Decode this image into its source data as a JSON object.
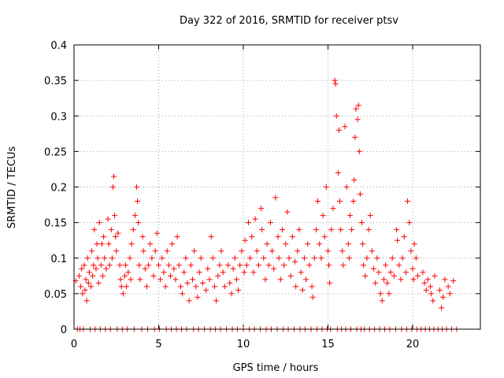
{
  "chart_data": {
    "type": "scatter",
    "title": "Day 322 of 2016, SRMTID for receiver ptsv",
    "xlabel": "GPS time / hours",
    "ylabel": "SRMTID / TECUs",
    "xlim": [
      0,
      24
    ],
    "ylim": [
      0,
      0.4
    ],
    "xticks": [
      0,
      5,
      10,
      15,
      20
    ],
    "xtick_labels": [
      "0",
      "5",
      "10",
      "15",
      "20"
    ],
    "yticks": [
      0,
      0.05,
      0.1,
      0.15,
      0.2,
      0.25,
      0.3,
      0.35,
      0.4
    ],
    "ytick_labels": [
      "0",
      "0.05",
      "0.1",
      "0.15",
      "0.2",
      "0.25",
      "0.3",
      "0.35",
      "0.4"
    ],
    "grid": true,
    "marker": "+",
    "color": "#ff0000",
    "series": [
      {
        "name": "SRMTID",
        "points": [
          [
            0.1,
            0.068
          ],
          [
            0.2,
            0.0
          ],
          [
            0.3,
            0.075
          ],
          [
            0.35,
            0.0
          ],
          [
            0.4,
            0.06
          ],
          [
            0.45,
            0.085
          ],
          [
            0.5,
            0.05
          ],
          [
            0.55,
            0.0
          ],
          [
            0.6,
            0.09
          ],
          [
            0.65,
            0.055
          ],
          [
            0.7,
            0.07
          ],
          [
            0.75,
            0.04
          ],
          [
            0.8,
            0.1
          ],
          [
            0.85,
            0.065
          ],
          [
            0.9,
            0.08
          ],
          [
            0.95,
            0.0
          ],
          [
            1.0,
            0.06
          ],
          [
            1.05,
            0.11
          ],
          [
            1.1,
            0.075
          ],
          [
            1.15,
            0.09
          ],
          [
            1.2,
            0.14
          ],
          [
            1.25,
            0.0
          ],
          [
            1.3,
            0.085
          ],
          [
            1.35,
            0.12
          ],
          [
            1.4,
            0.1
          ],
          [
            1.45,
            0.065
          ],
          [
            1.5,
            0.15
          ],
          [
            1.55,
            0.0
          ],
          [
            1.6,
            0.09
          ],
          [
            1.65,
            0.12
          ],
          [
            1.7,
            0.075
          ],
          [
            1.75,
            0.13
          ],
          [
            1.8,
            0.1
          ],
          [
            1.85,
            0.0
          ],
          [
            1.9,
            0.085
          ],
          [
            2.0,
            0.155
          ],
          [
            2.05,
            0.12
          ],
          [
            2.1,
            0.09
          ],
          [
            2.15,
            0.0
          ],
          [
            2.2,
            0.14
          ],
          [
            2.25,
            0.1
          ],
          [
            2.3,
            0.2
          ],
          [
            2.35,
            0.215
          ],
          [
            2.4,
            0.16
          ],
          [
            2.45,
            0.13
          ],
          [
            2.5,
            0.11
          ],
          [
            2.55,
            0.0
          ],
          [
            2.6,
            0.135
          ],
          [
            2.7,
            0.09
          ],
          [
            2.75,
            0.07
          ],
          [
            2.8,
            0.06
          ],
          [
            2.85,
            0.0
          ],
          [
            2.9,
            0.05
          ],
          [
            3.0,
            0.075
          ],
          [
            3.05,
            0.09
          ],
          [
            3.1,
            0.06
          ],
          [
            3.15,
            0.0
          ],
          [
            3.2,
            0.08
          ],
          [
            3.3,
            0.1
          ],
          [
            3.35,
            0.07
          ],
          [
            3.4,
            0.12
          ],
          [
            3.5,
            0.14
          ],
          [
            3.55,
            0.0
          ],
          [
            3.6,
            0.16
          ],
          [
            3.7,
            0.2
          ],
          [
            3.75,
            0.18
          ],
          [
            3.8,
            0.15
          ],
          [
            3.85,
            0.09
          ],
          [
            3.9,
            0.07
          ],
          [
            4.0,
            0.0
          ],
          [
            4.05,
            0.13
          ],
          [
            4.1,
            0.11
          ],
          [
            4.2,
            0.085
          ],
          [
            4.3,
            0.06
          ],
          [
            4.35,
            0.0
          ],
          [
            4.4,
            0.09
          ],
          [
            4.5,
            0.12
          ],
          [
            4.6,
            0.1
          ],
          [
            4.7,
            0.075
          ],
          [
            4.75,
            0.0
          ],
          [
            4.8,
            0.11
          ],
          [
            4.9,
            0.135
          ],
          [
            5.0,
            0.09
          ],
          [
            5.05,
            0.0
          ],
          [
            5.1,
            0.07
          ],
          [
            5.2,
            0.1
          ],
          [
            5.3,
            0.08
          ],
          [
            5.4,
            0.06
          ],
          [
            5.45,
            0.0
          ],
          [
            5.5,
            0.11
          ],
          [
            5.6,
            0.09
          ],
          [
            5.7,
            0.075
          ],
          [
            5.75,
            0.0
          ],
          [
            5.8,
            0.12
          ],
          [
            5.9,
            0.085
          ],
          [
            6.0,
            0.07
          ],
          [
            6.05,
            0.0
          ],
          [
            6.1,
            0.13
          ],
          [
            6.2,
            0.09
          ],
          [
            6.3,
            0.06
          ],
          [
            6.35,
            0.0
          ],
          [
            6.4,
            0.05
          ],
          [
            6.5,
            0.08
          ],
          [
            6.6,
            0.1
          ],
          [
            6.65,
            0.0
          ],
          [
            6.7,
            0.065
          ],
          [
            6.8,
            0.04
          ],
          [
            6.9,
            0.09
          ],
          [
            7.0,
            0.07
          ],
          [
            7.05,
            0.0
          ],
          [
            7.1,
            0.11
          ],
          [
            7.2,
            0.06
          ],
          [
            7.3,
            0.045
          ],
          [
            7.35,
            0.0
          ],
          [
            7.4,
            0.08
          ],
          [
            7.5,
            0.1
          ],
          [
            7.6,
            0.065
          ],
          [
            7.7,
            0.0
          ],
          [
            7.8,
            0.055
          ],
          [
            7.9,
            0.085
          ],
          [
            8.0,
            0.07
          ],
          [
            8.05,
            0.0
          ],
          [
            8.1,
            0.13
          ],
          [
            8.2,
            0.1
          ],
          [
            8.3,
            0.06
          ],
          [
            8.35,
            0.0
          ],
          [
            8.4,
            0.04
          ],
          [
            8.5,
            0.075
          ],
          [
            8.6,
            0.09
          ],
          [
            8.65,
            0.0
          ],
          [
            8.7,
            0.11
          ],
          [
            8.8,
            0.08
          ],
          [
            8.9,
            0.06
          ],
          [
            9.0,
            0.0
          ],
          [
            9.1,
            0.09
          ],
          [
            9.2,
            0.065
          ],
          [
            9.3,
            0.05
          ],
          [
            9.35,
            0.0
          ],
          [
            9.4,
            0.085
          ],
          [
            9.5,
            0.1
          ],
          [
            9.6,
            0.07
          ],
          [
            9.65,
            0.0
          ],
          [
            9.7,
            0.055
          ],
          [
            9.8,
            0.09
          ],
          [
            9.9,
            0.11
          ],
          [
            10.0,
            0.0
          ],
          [
            10.05,
            0.08
          ],
          [
            10.1,
            0.125
          ],
          [
            10.2,
            0.09
          ],
          [
            10.3,
            0.15
          ],
          [
            10.35,
            0.0
          ],
          [
            10.4,
            0.1
          ],
          [
            10.5,
            0.13
          ],
          [
            10.6,
            0.08
          ],
          [
            10.65,
            0.0
          ],
          [
            10.7,
            0.155
          ],
          [
            10.8,
            0.11
          ],
          [
            10.9,
            0.09
          ],
          [
            11.0,
            0.0
          ],
          [
            11.05,
            0.17
          ],
          [
            11.1,
            0.14
          ],
          [
            11.2,
            0.1
          ],
          [
            11.3,
            0.07
          ],
          [
            11.35,
            0.0
          ],
          [
            11.4,
            0.12
          ],
          [
            11.5,
            0.09
          ],
          [
            11.6,
            0.15
          ],
          [
            11.65,
            0.0
          ],
          [
            11.7,
            0.11
          ],
          [
            11.8,
            0.085
          ],
          [
            11.9,
            0.185
          ],
          [
            12.0,
            0.0
          ],
          [
            12.05,
            0.13
          ],
          [
            12.1,
            0.1
          ],
          [
            12.2,
            0.07
          ],
          [
            12.3,
            0.14
          ],
          [
            12.35,
            0.0
          ],
          [
            12.4,
            0.09
          ],
          [
            12.5,
            0.12
          ],
          [
            12.6,
            0.165
          ],
          [
            12.65,
            0.0
          ],
          [
            12.7,
            0.1
          ],
          [
            12.8,
            0.075
          ],
          [
            12.9,
            0.13
          ],
          [
            13.0,
            0.0
          ],
          [
            13.05,
            0.095
          ],
          [
            13.1,
            0.06
          ],
          [
            13.2,
            0.11
          ],
          [
            13.3,
            0.14
          ],
          [
            13.35,
            0.0
          ],
          [
            13.4,
            0.08
          ],
          [
            13.5,
            0.055
          ],
          [
            13.6,
            0.1
          ],
          [
            13.65,
            0.0
          ],
          [
            13.7,
            0.07
          ],
          [
            13.8,
            0.12
          ],
          [
            13.9,
            0.09
          ],
          [
            14.0,
            0.0
          ],
          [
            14.05,
            0.06
          ],
          [
            14.1,
            0.045
          ],
          [
            14.2,
            0.1
          ],
          [
            14.3,
            0.14
          ],
          [
            14.35,
            0.0
          ],
          [
            14.4,
            0.18
          ],
          [
            14.5,
            0.12
          ],
          [
            14.6,
            0.1
          ],
          [
            14.65,
            0.0
          ],
          [
            14.7,
            0.16
          ],
          [
            14.8,
            0.13
          ],
          [
            14.9,
            0.2
          ],
          [
            14.95,
            0.0
          ],
          [
            15.0,
            0.11
          ],
          [
            15.05,
            0.09
          ],
          [
            15.1,
            0.065
          ],
          [
            15.15,
            0.0
          ],
          [
            15.2,
            0.14
          ],
          [
            15.3,
            0.17
          ],
          [
            15.4,
            0.35
          ],
          [
            15.45,
            0.345
          ],
          [
            15.5,
            0.3
          ],
          [
            15.55,
            0.0
          ],
          [
            15.6,
            0.22
          ],
          [
            15.65,
            0.28
          ],
          [
            15.7,
            0.18
          ],
          [
            15.75,
            0.14
          ],
          [
            15.8,
            0.0
          ],
          [
            15.85,
            0.11
          ],
          [
            15.9,
            0.09
          ],
          [
            16.0,
            0.285
          ],
          [
            16.05,
            0.0
          ],
          [
            16.1,
            0.2
          ],
          [
            16.2,
            0.12
          ],
          [
            16.25,
            0.1
          ],
          [
            16.3,
            0.16
          ],
          [
            16.35,
            0.0
          ],
          [
            16.4,
            0.14
          ],
          [
            16.5,
            0.18
          ],
          [
            16.55,
            0.21
          ],
          [
            16.6,
            0.27
          ],
          [
            16.65,
            0.31
          ],
          [
            16.7,
            0.0
          ],
          [
            16.75,
            0.295
          ],
          [
            16.8,
            0.315
          ],
          [
            16.85,
            0.25
          ],
          [
            16.9,
            0.19
          ],
          [
            16.95,
            0.0
          ],
          [
            17.0,
            0.15
          ],
          [
            17.05,
            0.12
          ],
          [
            17.1,
            0.09
          ],
          [
            17.15,
            0.0
          ],
          [
            17.2,
            0.075
          ],
          [
            17.3,
            0.1
          ],
          [
            17.4,
            0.14
          ],
          [
            17.45,
            0.0
          ],
          [
            17.5,
            0.16
          ],
          [
            17.6,
            0.11
          ],
          [
            17.7,
            0.085
          ],
          [
            17.75,
            0.0
          ],
          [
            17.8,
            0.065
          ],
          [
            17.9,
            0.1
          ],
          [
            18.0,
            0.08
          ],
          [
            18.05,
            0.0
          ],
          [
            18.1,
            0.05
          ],
          [
            18.2,
            0.04
          ],
          [
            18.3,
            0.07
          ],
          [
            18.35,
            0.0
          ],
          [
            18.4,
            0.09
          ],
          [
            18.5,
            0.065
          ],
          [
            18.6,
            0.05
          ],
          [
            18.65,
            0.0
          ],
          [
            18.7,
            0.08
          ],
          [
            18.8,
            0.1
          ],
          [
            18.9,
            0.075
          ],
          [
            19.0,
            0.0
          ],
          [
            19.05,
            0.14
          ],
          [
            19.1,
            0.125
          ],
          [
            19.2,
            0.09
          ],
          [
            19.3,
            0.07
          ],
          [
            19.35,
            0.0
          ],
          [
            19.4,
            0.1
          ],
          [
            19.5,
            0.13
          ],
          [
            19.6,
            0.08
          ],
          [
            19.65,
            0.0
          ],
          [
            19.7,
            0.18
          ],
          [
            19.8,
            0.15
          ],
          [
            19.9,
            0.11
          ],
          [
            19.95,
            0.0
          ],
          [
            20.0,
            0.085
          ],
          [
            20.05,
            0.07
          ],
          [
            20.1,
            0.12
          ],
          [
            20.2,
            0.1
          ],
          [
            20.25,
            0.0
          ],
          [
            20.3,
            0.075
          ],
          [
            20.5,
            0.0
          ],
          [
            20.6,
            0.08
          ],
          [
            20.7,
            0.065
          ],
          [
            20.75,
            0.0
          ],
          [
            20.8,
            0.055
          ],
          [
            20.9,
            0.07
          ],
          [
            21.0,
            0.0
          ],
          [
            21.05,
            0.06
          ],
          [
            21.1,
            0.05
          ],
          [
            21.2,
            0.04
          ],
          [
            21.25,
            0.0
          ],
          [
            21.3,
            0.075
          ],
          [
            21.5,
            0.0
          ],
          [
            21.6,
            0.055
          ],
          [
            21.7,
            0.03
          ],
          [
            21.75,
            0.0
          ],
          [
            21.8,
            0.045
          ],
          [
            21.9,
            0.07
          ],
          [
            22.0,
            0.0
          ],
          [
            22.1,
            0.06
          ],
          [
            22.2,
            0.05
          ],
          [
            22.3,
            0.0
          ],
          [
            22.4,
            0.068
          ],
          [
            22.6,
            0.0
          ]
        ]
      }
    ]
  }
}
